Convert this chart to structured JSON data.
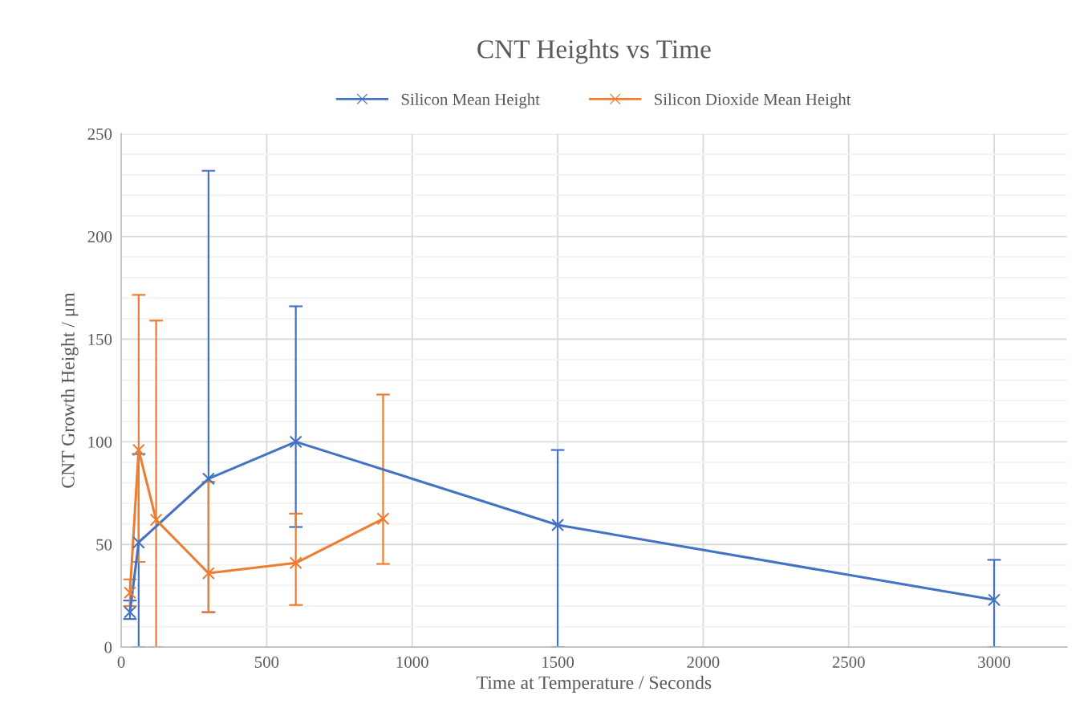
{
  "chart_data": {
    "type": "line",
    "title": "CNT Heights vs Time",
    "xlabel": "Time at Temperature / Seconds",
    "ylabel": "CNT Growth Height / μm",
    "series": [
      {
        "name": "Silicon Mean Height",
        "color": "#4472c4",
        "x": [
          30,
          60,
          300,
          600,
          1500,
          3000
        ],
        "values": [
          17,
          51,
          82,
          100,
          59.5,
          23
        ],
        "errors": [
          [
            13.7,
            22.7
          ],
          [
            0,
            94
          ],
          [
            17,
            232
          ],
          [
            58.5,
            166
          ],
          [
            0,
            96
          ],
          [
            0,
            42.5
          ]
        ]
      },
      {
        "name": "Silicon Dioxide Mean Height",
        "color": "#ed7d31",
        "x": [
          30,
          60,
          120,
          300,
          600,
          900
        ],
        "values": [
          26.5,
          96,
          62,
          36,
          41,
          62.5
        ],
        "errors": [
          [
            20,
            33
          ],
          [
            41.5,
            171.5
          ],
          [
            0,
            159
          ],
          [
            17,
            80.5
          ],
          [
            20.5,
            65
          ],
          [
            40.5,
            123
          ]
        ]
      }
    ],
    "xlim": [
      0,
      3250
    ],
    "xticks": [
      0,
      500,
      1000,
      1500,
      2000,
      2500,
      3000
    ],
    "ylim": [
      0,
      250
    ],
    "yticks": [
      0,
      {
        "value": 10,
        "label": null
      },
      {
        "value": 20,
        "label": null
      },
      {
        "value": 30,
        "label": null
      },
      {
        "value": 40,
        "label": null
      },
      50,
      {
        "value": 60,
        "label": null
      },
      {
        "value": 70,
        "label": null
      },
      {
        "value": 80,
        "label": null
      },
      {
        "value": 90,
        "label": null
      },
      100,
      {
        "value": 110,
        "label": null
      },
      {
        "value": 120,
        "label": null
      },
      {
        "value": 130,
        "label": null
      },
      {
        "value": 140,
        "label": null
      },
      150,
      {
        "value": 160,
        "label": null
      },
      {
        "value": 170,
        "label": null
      },
      {
        "value": 180,
        "label": null
      },
      {
        "value": 190,
        "label": null
      },
      200,
      {
        "value": 210,
        "label": null
      },
      {
        "value": 220,
        "label": null
      },
      {
        "value": 230,
        "label": null
      },
      {
        "value": 240,
        "label": null
      },
      250
    ],
    "grid": true,
    "legend": "top",
    "marker": "cross",
    "line_style": "solid"
  }
}
